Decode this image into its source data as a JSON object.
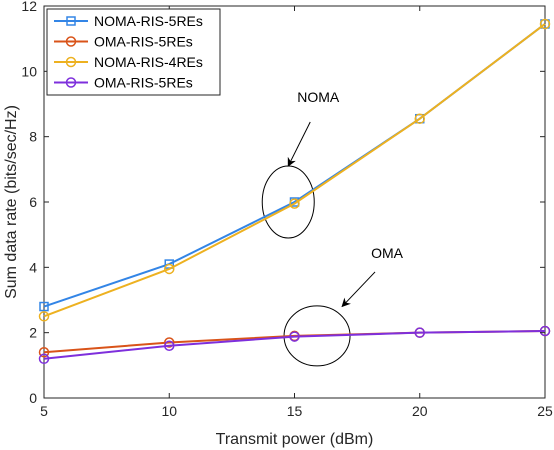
{
  "chart_data": {
    "type": "line",
    "xlabel": "Transmit power (dBm)",
    "ylabel": "Sum data rate (bits/sec/Hz)",
    "xlim": [
      5,
      25
    ],
    "ylim": [
      0,
      12
    ],
    "x_ticks": [
      5,
      10,
      15,
      20,
      25
    ],
    "y_ticks": [
      0,
      2,
      4,
      6,
      8,
      10,
      12
    ],
    "grid": false,
    "legend_position": "top-left",
    "x": [
      5,
      10,
      15,
      20,
      25
    ],
    "series": [
      {
        "name": "NOMA-RIS-5REs",
        "color": "#3385e6",
        "marker": "square",
        "values": [
          2.8,
          4.1,
          6.0,
          8.55,
          11.45
        ]
      },
      {
        "name": "OMA-RIS-5REs",
        "color": "#d95319",
        "marker": "circle",
        "values": [
          1.4,
          1.7,
          1.9,
          2.0,
          2.05
        ]
      },
      {
        "name": "NOMA-RIS-4REs",
        "color": "#edb120",
        "marker": "circle",
        "values": [
          2.5,
          3.95,
          5.95,
          8.55,
          11.45
        ]
      },
      {
        "name": "OMA-RIS-5REs",
        "color": "#7e2fdc",
        "marker": "circle",
        "values": [
          1.2,
          1.6,
          1.88,
          2.0,
          2.05
        ]
      }
    ],
    "annotations": [
      {
        "text": "NOMA",
        "ellipse_center": [
          14.75,
          6.0
        ],
        "arrow_to": [
          14.75,
          7.1
        ]
      },
      {
        "text": "OMA",
        "ellipse_center": [
          15.9,
          1.9
        ],
        "arrow_to": [
          16.9,
          2.8
        ]
      }
    ]
  }
}
